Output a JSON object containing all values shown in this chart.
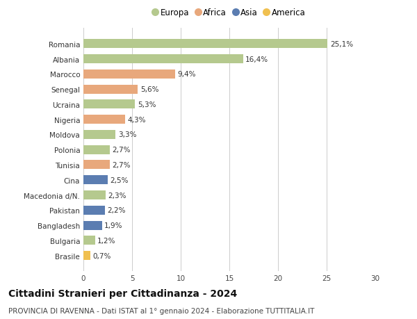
{
  "categories": [
    "Romania",
    "Albania",
    "Marocco",
    "Senegal",
    "Ucraina",
    "Nigeria",
    "Moldova",
    "Polonia",
    "Tunisia",
    "Cina",
    "Macedonia d/N.",
    "Pakistan",
    "Bangladesh",
    "Bulgaria",
    "Brasile"
  ],
  "values": [
    25.1,
    16.4,
    9.4,
    5.6,
    5.3,
    4.3,
    3.3,
    2.7,
    2.7,
    2.5,
    2.3,
    2.2,
    1.9,
    1.2,
    0.7
  ],
  "labels": [
    "25,1%",
    "16,4%",
    "9,4%",
    "5,6%",
    "5,3%",
    "4,3%",
    "3,3%",
    "2,7%",
    "2,7%",
    "2,5%",
    "2,3%",
    "2,2%",
    "1,9%",
    "1,2%",
    "0,7%"
  ],
  "continents": [
    "Europa",
    "Europa",
    "Africa",
    "Africa",
    "Europa",
    "Africa",
    "Europa",
    "Europa",
    "Africa",
    "Asia",
    "Europa",
    "Asia",
    "Asia",
    "Europa",
    "America"
  ],
  "colors": {
    "Europa": "#b5c98e",
    "Africa": "#e8a87c",
    "Asia": "#5b7db1",
    "America": "#f0c050"
  },
  "legend_order": [
    "Europa",
    "Africa",
    "Asia",
    "America"
  ],
  "title": "Cittadini Stranieri per Cittadinanza - 2024",
  "subtitle": "PROVINCIA DI RAVENNA - Dati ISTAT al 1° gennaio 2024 - Elaborazione TUTTITALIA.IT",
  "xlim": [
    0,
    30
  ],
  "xticks": [
    0,
    5,
    10,
    15,
    20,
    25,
    30
  ],
  "background_color": "#ffffff",
  "grid_color": "#cccccc",
  "bar_height": 0.6,
  "title_fontsize": 10,
  "subtitle_fontsize": 7.5,
  "label_fontsize": 7.5,
  "tick_fontsize": 7.5,
  "legend_fontsize": 8.5
}
